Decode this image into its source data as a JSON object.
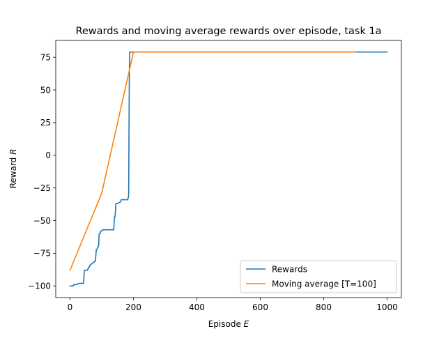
{
  "chart_data": {
    "type": "line",
    "title": "Rewards and moving average rewards over episode, task 1a",
    "xlabel": {
      "prefix": "Episode ",
      "symbol": "E"
    },
    "ylabel": {
      "prefix": "Reward ",
      "symbol": "R"
    },
    "xlim": [
      -45,
      1045
    ],
    "ylim": [
      -108.9,
      87.9
    ],
    "xticks": [
      0,
      200,
      400,
      600,
      800,
      1000
    ],
    "yticks": [
      -100,
      -75,
      -50,
      -25,
      0,
      25,
      50,
      75
    ],
    "grid": false,
    "legend_position": "lower-right",
    "series": [
      {
        "name": "Rewards",
        "color": "#1f77b4",
        "x": [
          0,
          10,
          12,
          20,
          28,
          30,
          38,
          43,
          45,
          50,
          55,
          58,
          60,
          63,
          65,
          68,
          70,
          73,
          75,
          78,
          80,
          83,
          85,
          88,
          90,
          92,
          95,
          97,
          100,
          102,
          108,
          115,
          123,
          130,
          138,
          140,
          142,
          145,
          150,
          155,
          158,
          162,
          170,
          178,
          182,
          184,
          185,
          186,
          187,
          188,
          190,
          195,
          200,
          300,
          500,
          700,
          900,
          1000
        ],
        "y": [
          -100,
          -100,
          -99,
          -99,
          -98,
          -98,
          -98,
          -98,
          -88,
          -88,
          -88,
          -86,
          -86,
          -84,
          -84,
          -83,
          -83,
          -82,
          -82,
          -81,
          -81,
          -72,
          -72,
          -70,
          -70,
          -60,
          -60,
          -58,
          -58,
          -57,
          -57,
          -57,
          -57,
          -57,
          -57,
          -47,
          -47,
          -37,
          -37,
          -36,
          -36,
          -34,
          -34,
          -34,
          -34,
          -32,
          -30,
          20,
          60,
          79,
          79,
          79,
          79,
          79,
          79,
          79,
          79,
          79
        ]
      },
      {
        "name": "Moving average [T=100]",
        "color": "#ff7f0e",
        "x": [
          0,
          100,
          200,
          300,
          400,
          500,
          600,
          700,
          800,
          900
        ],
        "y": [
          -88,
          -29,
          79,
          79,
          79,
          79,
          79,
          79,
          79,
          79
        ]
      }
    ]
  }
}
